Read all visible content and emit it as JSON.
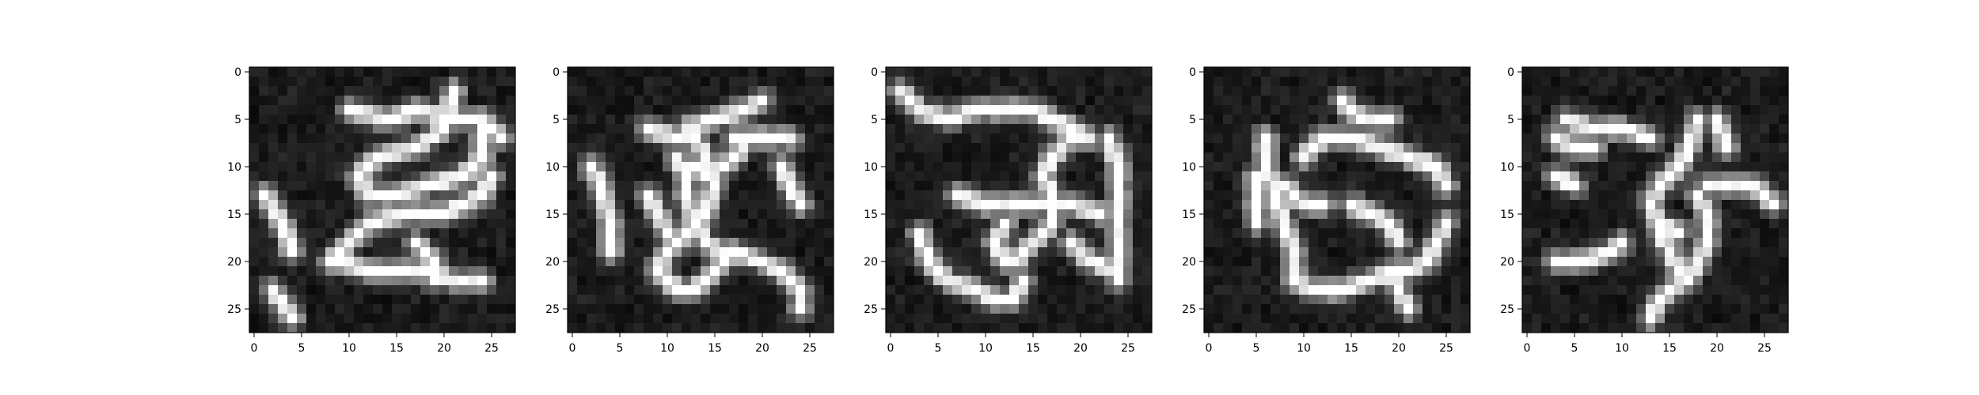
{
  "chart_data": [
    {
      "type": "heatmap",
      "colormap": "gray",
      "grid": false,
      "xlim": [
        -0.5,
        27.5
      ],
      "ylim": [
        27.5,
        -0.5
      ],
      "xticks": [
        0,
        5,
        10,
        15,
        20,
        25
      ],
      "yticks": [
        0,
        5,
        10,
        15,
        20,
        25
      ],
      "xtick_labels": [
        "0",
        "5",
        "10",
        "15",
        "20",
        "25"
      ],
      "ytick_labels": [
        "0",
        "5",
        "10",
        "15",
        "20",
        "25"
      ],
      "strokes": [
        [
          [
            21,
            2
          ],
          [
            20,
            6
          ],
          [
            17,
            8
          ],
          [
            13,
            9
          ],
          [
            11,
            11
          ],
          [
            12,
            13
          ],
          [
            15,
            13
          ],
          [
            18,
            12
          ],
          [
            22,
            11
          ],
          [
            24,
            9
          ],
          [
            24,
            6
          ]
        ],
        [
          [
            8,
            20
          ],
          [
            10,
            18
          ],
          [
            12,
            16
          ],
          [
            16,
            15
          ],
          [
            20,
            15
          ],
          [
            24,
            13
          ],
          [
            25,
            11
          ]
        ],
        [
          [
            9,
            20
          ],
          [
            12,
            21
          ],
          [
            16,
            21
          ],
          [
            18,
            21
          ],
          [
            21,
            22
          ],
          [
            24,
            22
          ]
        ],
        [
          [
            17,
            18
          ],
          [
            19,
            20
          ],
          [
            19,
            22
          ]
        ],
        [
          [
            1,
            13
          ],
          [
            3,
            16
          ],
          [
            4,
            19
          ]
        ],
        [
          [
            2,
            23
          ],
          [
            4,
            26
          ]
        ],
        [
          [
            10,
            4
          ],
          [
            14,
            5
          ],
          [
            17,
            4
          ],
          [
            21,
            5
          ],
          [
            24,
            5
          ],
          [
            26,
            7
          ]
        ]
      ]
    },
    {
      "type": "heatmap",
      "colormap": "gray",
      "grid": false,
      "xlim": [
        -0.5,
        27.5
      ],
      "ylim": [
        27.5,
        -0.5
      ],
      "xticks": [
        0,
        5,
        10,
        15,
        20,
        25
      ],
      "yticks": [
        0,
        5,
        10,
        15,
        20,
        25
      ],
      "xtick_labels": [
        "0",
        "5",
        "10",
        "15",
        "20",
        "25"
      ],
      "ytick_labels": [
        "0",
        "5",
        "10",
        "15",
        "20",
        "25"
      ],
      "strokes": [
        [
          [
            8,
            6
          ],
          [
            11,
            7
          ],
          [
            13,
            7
          ],
          [
            14,
            9
          ],
          [
            15,
            12
          ],
          [
            14,
            15
          ],
          [
            12,
            17
          ],
          [
            10,
            19
          ],
          [
            9,
            21
          ],
          [
            11,
            23
          ],
          [
            13,
            23
          ],
          [
            15,
            21
          ],
          [
            17,
            19
          ],
          [
            20,
            20
          ],
          [
            22,
            21
          ],
          [
            24,
            23
          ],
          [
            24,
            25
          ]
        ],
        [
          [
            11,
            9
          ],
          [
            12,
            11
          ],
          [
            12,
            13
          ],
          [
            13,
            16
          ],
          [
            14,
            18
          ],
          [
            16,
            19
          ]
        ],
        [
          [
            13,
            10
          ],
          [
            14,
            11
          ],
          [
            16,
            10
          ],
          [
            18,
            8
          ]
        ],
        [
          [
            17,
            7
          ],
          [
            21,
            7
          ],
          [
            23,
            7
          ]
        ],
        [
          [
            12,
            6
          ],
          [
            15,
            5
          ],
          [
            18,
            4
          ],
          [
            20,
            3
          ]
        ],
        [
          [
            2,
            10
          ],
          [
            3,
            12
          ],
          [
            4,
            16
          ],
          [
            4,
            19
          ]
        ],
        [
          [
            8,
            13
          ],
          [
            9,
            15
          ],
          [
            10,
            17
          ]
        ],
        [
          [
            22,
            10
          ],
          [
            23,
            12
          ],
          [
            24,
            14
          ]
        ]
      ]
    },
    {
      "type": "heatmap",
      "colormap": "gray",
      "grid": false,
      "xlim": [
        -0.5,
        27.5
      ],
      "ylim": [
        27.5,
        -0.5
      ],
      "xticks": [
        0,
        5,
        10,
        15,
        20,
        25
      ],
      "yticks": [
        0,
        5,
        10,
        15,
        20,
        25
      ],
      "xtick_labels": [
        "0",
        "5",
        "10",
        "15",
        "20",
        "25"
      ],
      "ytick_labels": [
        "0",
        "5",
        "10",
        "15",
        "20",
        "25"
      ],
      "strokes": [
        [
          [
            1,
            2
          ],
          [
            3,
            4
          ],
          [
            6,
            5
          ],
          [
            9,
            4
          ],
          [
            13,
            4
          ],
          [
            15,
            4
          ],
          [
            17,
            5
          ],
          [
            19,
            6
          ],
          [
            21,
            7
          ]
        ],
        [
          [
            3,
            17
          ],
          [
            4,
            20
          ],
          [
            6,
            22
          ],
          [
            9,
            23
          ],
          [
            11,
            24
          ],
          [
            13,
            24
          ],
          [
            14,
            22
          ]
        ],
        [
          [
            13,
            20
          ],
          [
            15,
            18
          ],
          [
            17,
            16
          ],
          [
            17,
            13
          ],
          [
            16,
            11
          ],
          [
            17,
            9
          ],
          [
            19,
            7
          ],
          [
            21,
            7
          ]
        ],
        [
          [
            23,
            7
          ],
          [
            24,
            10
          ],
          [
            24,
            13
          ],
          [
            24,
            16
          ],
          [
            24,
            19
          ],
          [
            24,
            22
          ]
        ],
        [
          [
            7,
            13
          ],
          [
            10,
            14
          ],
          [
            13,
            14
          ],
          [
            16,
            14
          ],
          [
            19,
            14
          ],
          [
            22,
            15
          ]
        ],
        [
          [
            19,
            18
          ],
          [
            21,
            20
          ],
          [
            24,
            21
          ]
        ],
        [
          [
            12,
            16
          ],
          [
            11,
            18
          ],
          [
            12,
            20
          ]
        ]
      ]
    },
    {
      "type": "heatmap",
      "colormap": "gray",
      "grid": false,
      "xlim": [
        -0.5,
        27.5
      ],
      "ylim": [
        27.5,
        -0.5
      ],
      "xticks": [
        0,
        5,
        10,
        15,
        20,
        25
      ],
      "yticks": [
        0,
        5,
        10,
        15,
        20,
        25
      ],
      "xtick_labels": [
        "0",
        "5",
        "10",
        "15",
        "20",
        "25"
      ],
      "ytick_labels": [
        "0",
        "5",
        "10",
        "15",
        "20",
        "25"
      ],
      "strokes": [
        [
          [
            6,
            7
          ],
          [
            6,
            10
          ],
          [
            7,
            13
          ],
          [
            8,
            16
          ],
          [
            9,
            19
          ],
          [
            9,
            22
          ],
          [
            11,
            23
          ],
          [
            14,
            23
          ],
          [
            17,
            22
          ],
          [
            19,
            21
          ],
          [
            21,
            21
          ],
          [
            23,
            20
          ],
          [
            24,
            18
          ],
          [
            25,
            16
          ]
        ],
        [
          [
            10,
            9
          ],
          [
            12,
            7
          ],
          [
            15,
            7
          ],
          [
            18,
            8
          ],
          [
            21,
            9
          ],
          [
            24,
            10
          ],
          [
            25,
            12
          ]
        ],
        [
          [
            19,
            21
          ],
          [
            20,
            23
          ],
          [
            21,
            25
          ]
        ],
        [
          [
            8,
            12
          ],
          [
            10,
            14
          ],
          [
            12,
            14
          ]
        ],
        [
          [
            15,
            14
          ],
          [
            17,
            15
          ],
          [
            19,
            16
          ],
          [
            20,
            18
          ]
        ],
        [
          [
            14,
            3
          ],
          [
            16,
            5
          ],
          [
            19,
            5
          ]
        ],
        [
          [
            5,
            11
          ],
          [
            5,
            14
          ],
          [
            5,
            16
          ]
        ]
      ]
    },
    {
      "type": "heatmap",
      "colormap": "gray",
      "grid": false,
      "xlim": [
        -0.5,
        27.5
      ],
      "ylim": [
        27.5,
        -0.5
      ],
      "xticks": [
        0,
        5,
        10,
        15,
        20,
        25
      ],
      "yticks": [
        0,
        5,
        10,
        15,
        20,
        25
      ],
      "xtick_labels": [
        "0",
        "5",
        "10",
        "15",
        "20",
        "25"
      ],
      "ytick_labels": [
        "0",
        "5",
        "10",
        "15",
        "20",
        "25"
      ],
      "strokes": [
        [
          [
            4,
            5
          ],
          [
            7,
            6
          ],
          [
            10,
            6
          ],
          [
            13,
            7
          ]
        ],
        [
          [
            3,
            7
          ],
          [
            5,
            8
          ],
          [
            7,
            8
          ]
        ],
        [
          [
            18,
            5
          ],
          [
            17,
            8
          ],
          [
            16,
            10
          ],
          [
            14,
            12
          ],
          [
            13,
            14
          ],
          [
            14,
            16
          ],
          [
            16,
            17
          ]
        ],
        [
          [
            18,
            13
          ],
          [
            19,
            15
          ],
          [
            19,
            18
          ],
          [
            18,
            20
          ],
          [
            17,
            22
          ],
          [
            15,
            23
          ],
          [
            14,
            24
          ],
          [
            13,
            26
          ]
        ],
        [
          [
            3,
            20
          ],
          [
            6,
            20
          ],
          [
            9,
            19
          ],
          [
            10,
            18
          ]
        ],
        [
          [
            19,
            12
          ],
          [
            21,
            12
          ],
          [
            24,
            12
          ],
          [
            26,
            14
          ]
        ],
        [
          [
            14,
            17
          ],
          [
            15,
            19
          ],
          [
            16,
            21
          ]
        ],
        [
          [
            20,
            5
          ],
          [
            21,
            8
          ]
        ],
        [
          [
            3,
            11
          ],
          [
            5,
            12
          ]
        ]
      ]
    }
  ]
}
